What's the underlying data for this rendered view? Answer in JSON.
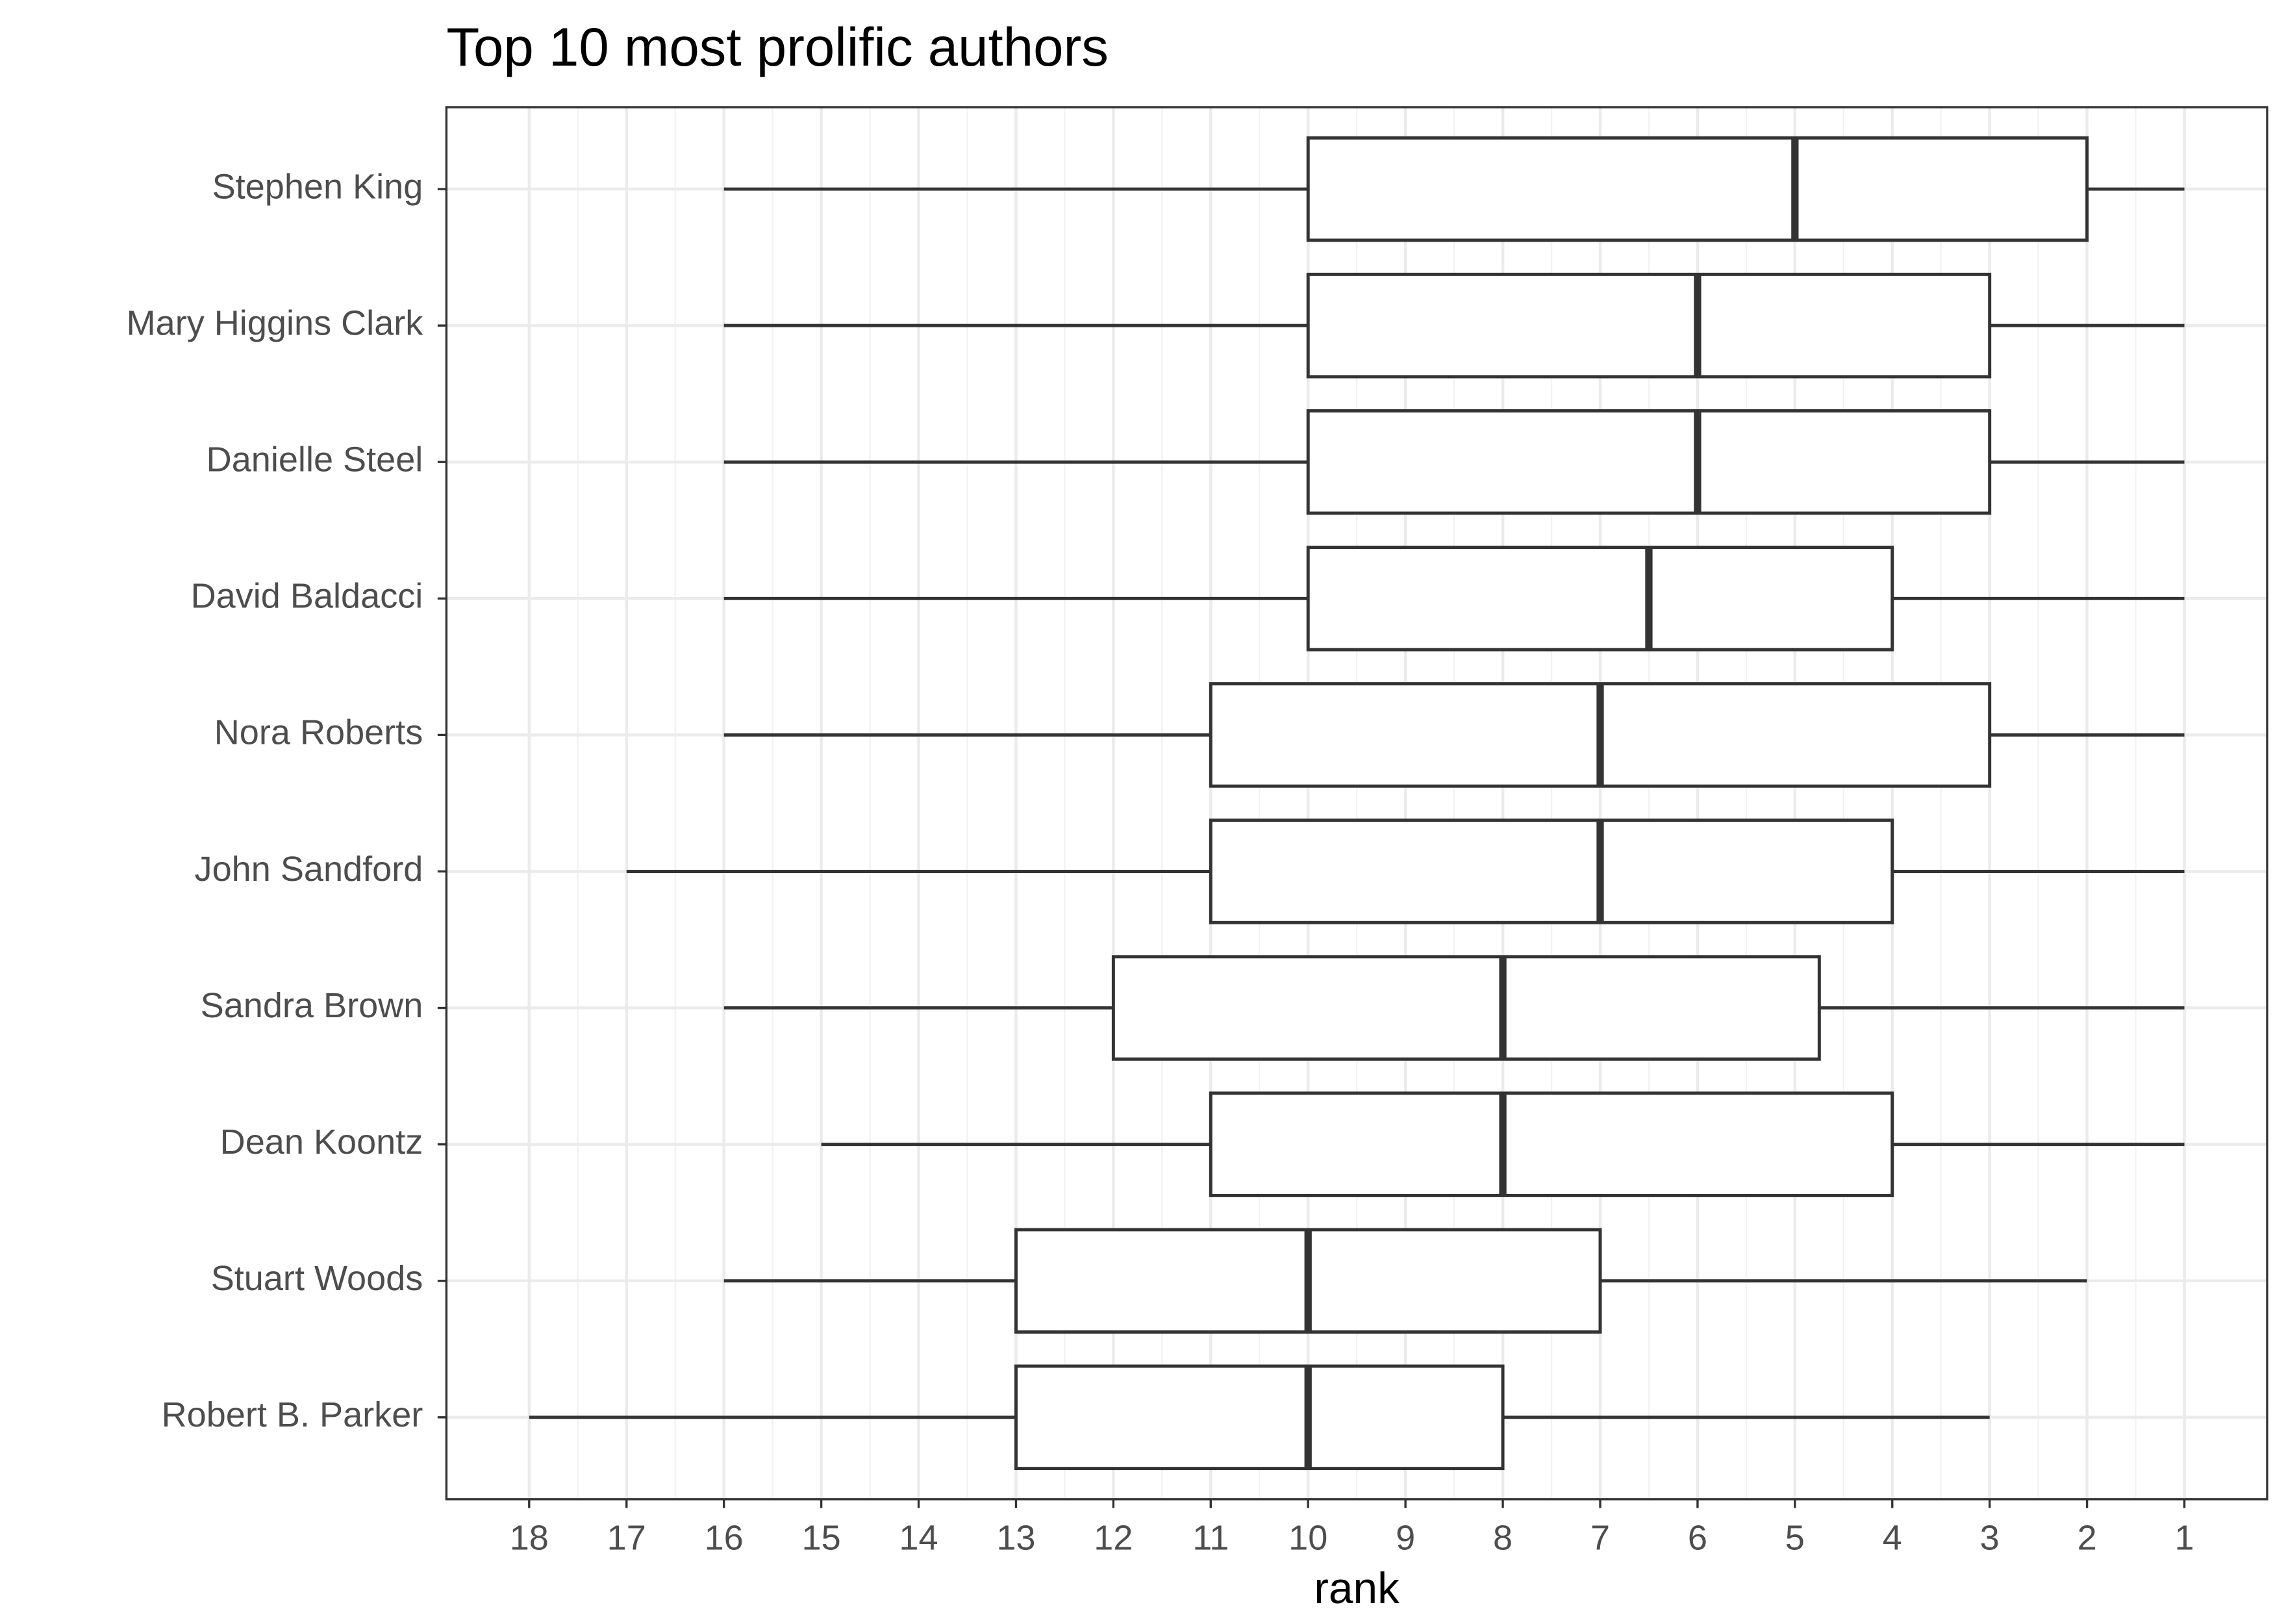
{
  "chart_data": {
    "type": "boxplot",
    "orientation": "horizontal",
    "title": "Top 10 most prolific authors",
    "x_label": "rank",
    "categories": [
      "Stephen King",
      "Mary Higgins Clark",
      "Danielle Steel",
      "David Baldacci",
      "Nora Roberts",
      "John Sandford",
      "Sandra Brown",
      "Dean Koontz",
      "Stuart Woods",
      "Robert B. Parker"
    ],
    "max": [
      16,
      16,
      16,
      16,
      16,
      17,
      16,
      15,
      16,
      18
    ],
    "q3": [
      10,
      10,
      10,
      10,
      11,
      11,
      12,
      11,
      13,
      13
    ],
    "median": [
      5,
      6,
      6,
      6.5,
      7,
      7,
      8,
      8,
      10,
      10
    ],
    "q1": [
      2,
      3,
      3,
      4,
      3,
      4,
      4.75,
      4,
      7,
      8
    ],
    "min": [
      1,
      1,
      1,
      1,
      1,
      1,
      1,
      1,
      2,
      3
    ],
    "color": "#333333",
    "fill": "#ffffff",
    "xlim": [
      18.85,
      0.15
    ],
    "xticks": [
      18,
      17,
      16,
      15,
      14,
      13,
      12,
      11,
      10,
      9,
      8,
      7,
      6,
      5,
      4,
      3,
      2,
      1
    ],
    "grid": true
  }
}
